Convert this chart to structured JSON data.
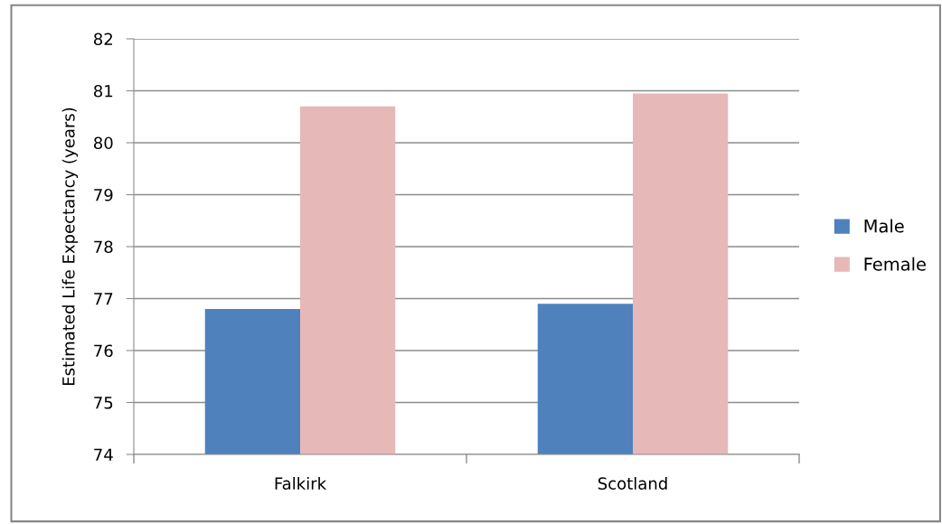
{
  "chart_data": {
    "type": "bar",
    "ylabel": "Estimated Life Expectancy (years)",
    "categories": [
      "Falkirk",
      "Scotland"
    ],
    "series": [
      {
        "name": "Male",
        "color": "#4f81bd",
        "values": [
          76.8,
          76.9
        ]
      },
      {
        "name": "Female",
        "color": "#e6b8b7",
        "values": [
          80.7,
          80.95
        ]
      }
    ],
    "ylim": [
      74,
      82
    ],
    "yticks": [
      74,
      75,
      76,
      77,
      78,
      79,
      80,
      81,
      82
    ],
    "grid": "y",
    "legend": "right"
  }
}
